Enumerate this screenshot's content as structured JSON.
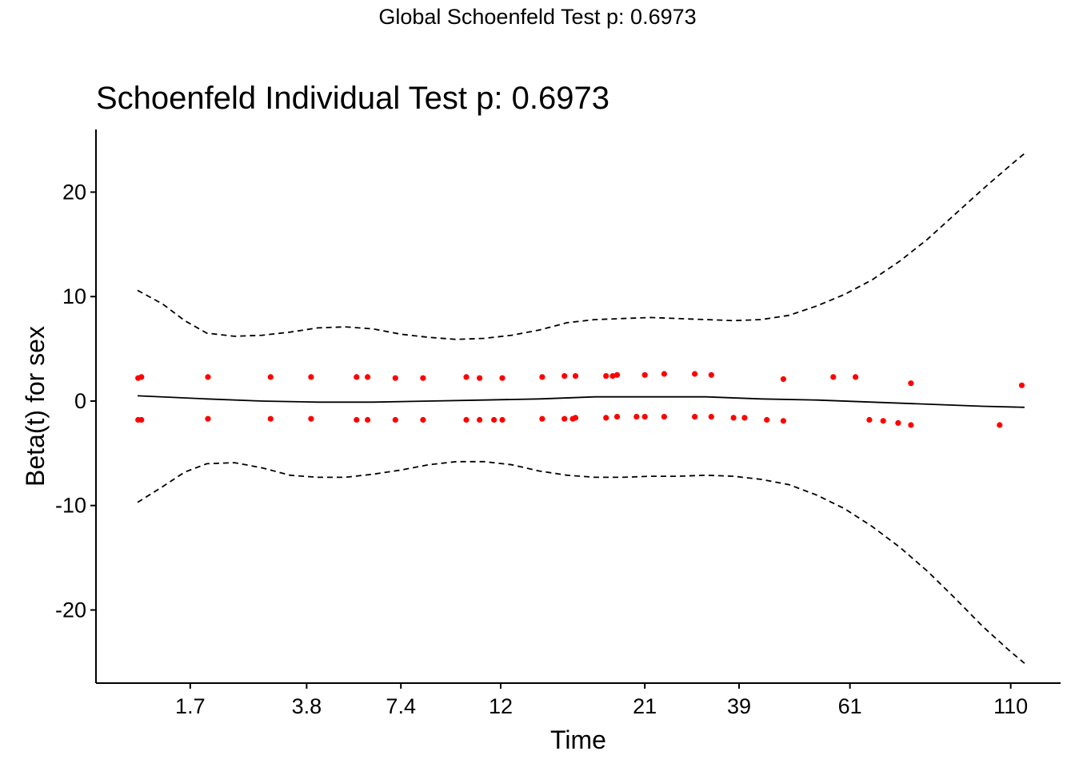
{
  "header": {
    "global_title": "Global Schoenfeld Test p: 0.6973"
  },
  "chart_data": {
    "type": "scatter",
    "title": "Schoenfeld Individual Test p: 0.6973",
    "xlabel": "Time",
    "ylabel": "Beta(t) for sex",
    "x_scale": "transformed (ranked time)",
    "x_ticks": [
      {
        "label": "1.7",
        "pos": 1.7
      },
      {
        "label": "3.8",
        "pos": 3.8
      },
      {
        "label": "7.4",
        "pos": 5.5
      },
      {
        "label": "12",
        "pos": 7.3
      },
      {
        "label": "21",
        "pos": 9.9
      },
      {
        "label": "39",
        "pos": 11.6
      },
      {
        "label": "61",
        "pos": 13.6
      },
      {
        "label": "110",
        "pos": 16.5
      }
    ],
    "xlim": [
      0.0,
      17.4
    ],
    "ylim": [
      -27,
      26
    ],
    "y_ticks": [
      -20,
      -10,
      0,
      10,
      20
    ],
    "grid": false,
    "colors": {
      "points": "#ff0000",
      "lines": "#000000"
    },
    "series": [
      {
        "type": "scatter",
        "color": "#ff0000",
        "points": [
          [
            0.76,
            2.2
          ],
          [
            0.82,
            2.3
          ],
          [
            0.76,
            -1.8
          ],
          [
            0.82,
            -1.8
          ],
          [
            2.02,
            2.3
          ],
          [
            2.02,
            -1.7
          ],
          [
            3.15,
            2.3
          ],
          [
            3.15,
            -1.7
          ],
          [
            3.88,
            2.3
          ],
          [
            3.88,
            -1.7
          ],
          [
            4.7,
            2.3
          ],
          [
            4.9,
            2.3
          ],
          [
            4.7,
            -1.8
          ],
          [
            4.9,
            -1.8
          ],
          [
            5.4,
            2.2
          ],
          [
            5.4,
            -1.8
          ],
          [
            5.9,
            2.2
          ],
          [
            5.9,
            -1.8
          ],
          [
            6.68,
            2.3
          ],
          [
            6.92,
            2.2
          ],
          [
            7.33,
            2.2
          ],
          [
            6.68,
            -1.8
          ],
          [
            6.92,
            -1.8
          ],
          [
            7.18,
            -1.8
          ],
          [
            7.33,
            -1.8
          ],
          [
            8.05,
            2.3
          ],
          [
            8.05,
            -1.7
          ],
          [
            8.45,
            2.4
          ],
          [
            8.65,
            2.4
          ],
          [
            8.45,
            -1.7
          ],
          [
            8.6,
            -1.7
          ],
          [
            8.65,
            -1.6
          ],
          [
            9.2,
            2.4
          ],
          [
            9.32,
            2.4
          ],
          [
            9.4,
            2.5
          ],
          [
            9.2,
            -1.6
          ],
          [
            9.4,
            -1.5
          ],
          [
            9.9,
            2.5
          ],
          [
            10.25,
            2.6
          ],
          [
            9.75,
            -1.5
          ],
          [
            9.9,
            -1.5
          ],
          [
            10.25,
            -1.5
          ],
          [
            10.8,
            2.6
          ],
          [
            11.1,
            2.5
          ],
          [
            10.8,
            -1.5
          ],
          [
            11.1,
            -1.5
          ],
          [
            11.5,
            -1.6
          ],
          [
            11.7,
            -1.6
          ],
          [
            12.1,
            -1.8
          ],
          [
            12.4,
            2.1
          ],
          [
            12.4,
            -1.9
          ],
          [
            13.3,
            2.3
          ],
          [
            13.7,
            2.3
          ],
          [
            13.95,
            -1.8
          ],
          [
            14.2,
            -1.9
          ],
          [
            14.47,
            -2.1
          ],
          [
            14.7,
            1.7
          ],
          [
            14.7,
            -2.3
          ],
          [
            16.3,
            -2.3
          ],
          [
            16.7,
            1.5
          ]
        ]
      },
      {
        "name": "fit",
        "type": "line",
        "style": "solid",
        "color": "#000000",
        "points": [
          [
            0.75,
            0.5
          ],
          [
            2.0,
            0.2
          ],
          [
            3.0,
            0.0
          ],
          [
            4.0,
            -0.1
          ],
          [
            5.0,
            -0.1
          ],
          [
            6.0,
            0.0
          ],
          [
            7.0,
            0.1
          ],
          [
            8.0,
            0.2
          ],
          [
            9.0,
            0.4
          ],
          [
            10.0,
            0.4
          ],
          [
            11.0,
            0.4
          ],
          [
            12.0,
            0.2
          ],
          [
            13.0,
            0.1
          ],
          [
            14.0,
            -0.1
          ],
          [
            15.0,
            -0.3
          ],
          [
            16.0,
            -0.5
          ],
          [
            16.75,
            -0.6
          ]
        ]
      },
      {
        "name": "upper",
        "type": "line",
        "style": "dashed",
        "color": "#000000",
        "points": [
          [
            0.75,
            10.6
          ],
          [
            1.2,
            9.3
          ],
          [
            1.6,
            7.7
          ],
          [
            2.0,
            6.5
          ],
          [
            2.5,
            6.2
          ],
          [
            3.0,
            6.3
          ],
          [
            3.5,
            6.6
          ],
          [
            4.0,
            7.0
          ],
          [
            4.5,
            7.1
          ],
          [
            5.0,
            6.9
          ],
          [
            5.5,
            6.4
          ],
          [
            6.0,
            6.1
          ],
          [
            6.5,
            5.9
          ],
          [
            7.0,
            6.0
          ],
          [
            7.5,
            6.3
          ],
          [
            8.0,
            6.8
          ],
          [
            8.5,
            7.5
          ],
          [
            9.0,
            7.8
          ],
          [
            9.5,
            7.9
          ],
          [
            10.0,
            8.0
          ],
          [
            10.5,
            7.9
          ],
          [
            11.0,
            7.8
          ],
          [
            11.5,
            7.7
          ],
          [
            12.0,
            7.8
          ],
          [
            12.5,
            8.2
          ],
          [
            13.0,
            9.1
          ],
          [
            13.5,
            10.2
          ],
          [
            14.0,
            11.6
          ],
          [
            14.5,
            13.4
          ],
          [
            15.0,
            15.5
          ],
          [
            15.5,
            17.9
          ],
          [
            16.0,
            20.3
          ],
          [
            16.5,
            22.6
          ],
          [
            16.75,
            23.7
          ]
        ]
      },
      {
        "name": "lower",
        "type": "line",
        "style": "dashed",
        "color": "#000000",
        "points": [
          [
            0.75,
            -9.7
          ],
          [
            1.2,
            -8.2
          ],
          [
            1.6,
            -6.8
          ],
          [
            2.0,
            -6.0
          ],
          [
            2.5,
            -5.9
          ],
          [
            3.0,
            -6.4
          ],
          [
            3.5,
            -7.1
          ],
          [
            4.0,
            -7.3
          ],
          [
            4.5,
            -7.3
          ],
          [
            5.0,
            -7.0
          ],
          [
            5.5,
            -6.6
          ],
          [
            6.0,
            -6.1
          ],
          [
            6.5,
            -5.8
          ],
          [
            7.0,
            -5.8
          ],
          [
            7.5,
            -6.1
          ],
          [
            8.0,
            -6.7
          ],
          [
            8.5,
            -7.1
          ],
          [
            9.0,
            -7.3
          ],
          [
            9.5,
            -7.3
          ],
          [
            10.0,
            -7.2
          ],
          [
            10.5,
            -7.2
          ],
          [
            11.0,
            -7.1
          ],
          [
            11.5,
            -7.2
          ],
          [
            12.0,
            -7.5
          ],
          [
            12.5,
            -8.0
          ],
          [
            13.0,
            -9.0
          ],
          [
            13.5,
            -10.3
          ],
          [
            14.0,
            -12.0
          ],
          [
            14.5,
            -14.0
          ],
          [
            15.0,
            -16.3
          ],
          [
            15.5,
            -18.9
          ],
          [
            16.0,
            -21.6
          ],
          [
            16.5,
            -24.0
          ],
          [
            16.75,
            -25.1
          ]
        ]
      }
    ]
  }
}
